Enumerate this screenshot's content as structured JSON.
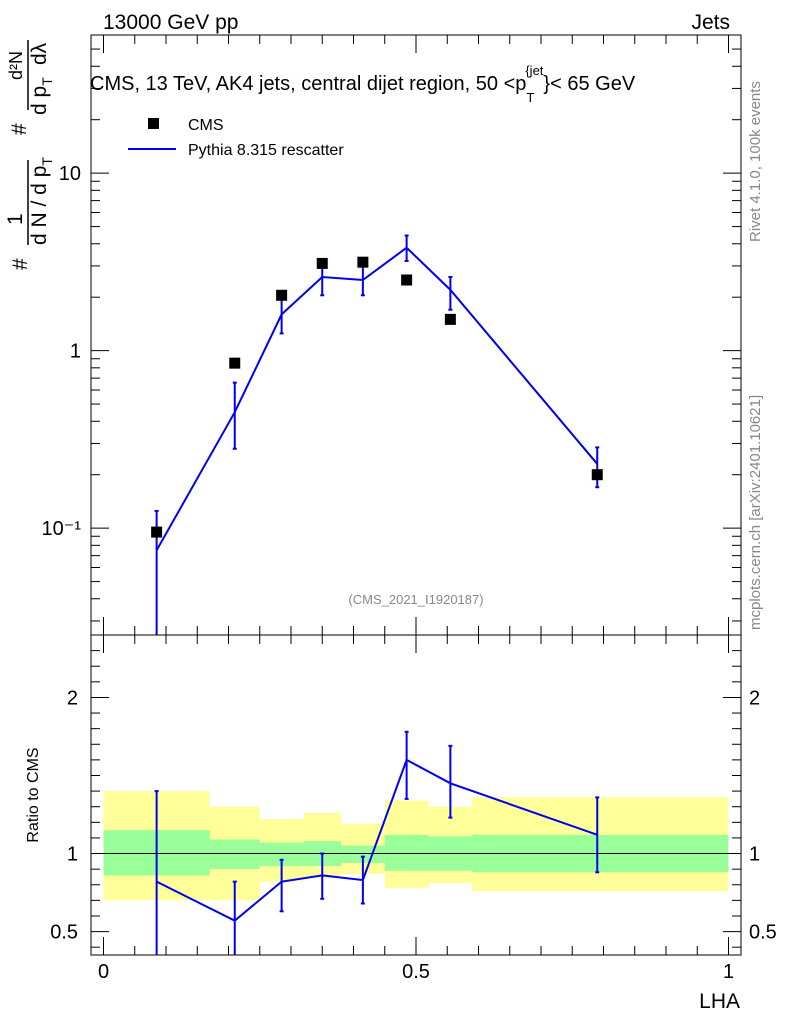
{
  "header": {
    "left": "13000 GeV pp",
    "right": "Jets"
  },
  "side_labels": {
    "rivet": "Rivet 4.1.0,  100k events",
    "mcplots": "mcplots.cern.ch [arXiv:2401.10621]"
  },
  "watermark": "(CMS_2021_I1920187)",
  "colors": {
    "mc": "#0000ee",
    "data": "#000000",
    "band_inner": "#99ff99",
    "band_outer": "#ffff99"
  },
  "chart_data": [
    {
      "type": "scatter",
      "panel": "main",
      "title": "CMS, 13 TeV, AK4 jets, central dijet region, 50 <p_T^{jet}< 65 GeV",
      "title_parts": {
        "pre": "CMS, 13 TeV, AK4 jets, central dijet region, 50 <p",
        "sub": "T",
        "sup": "{jet",
        "post": "}< 65 GeV"
      },
      "xlabel": "LHA",
      "ylabel": "1/(dN/dp_T) dN²/(dp_T dλ)",
      "ylabel_parts": {
        "hash": "#",
        "one": "1",
        "dN": "d N / d p",
        "T": "T",
        "d2N": "d²N",
        "dptdl": "d p",
        "dl": "dλ"
      },
      "yscale": "log",
      "ylim": [
        0.025,
        60
      ],
      "xlim": [
        -0.02,
        1.02
      ],
      "yticks": [
        {
          "v": 0.1,
          "label": "10⁻¹"
        },
        {
          "v": 1,
          "label": "1"
        },
        {
          "v": 10,
          "label": "10"
        }
      ],
      "legend": {
        "data_label": "CMS",
        "mc_label": "Pythia 8.315 rescatter",
        "placement": "top-left"
      },
      "series": [
        {
          "name": "CMS",
          "style": "markers",
          "x": [
            0.085,
            0.21,
            0.285,
            0.35,
            0.415,
            0.485,
            0.555,
            0.79
          ],
          "y": [
            0.095,
            0.85,
            2.05,
            3.1,
            3.15,
            2.5,
            1.5,
            0.2
          ]
        },
        {
          "name": "Pythia 8.315 rescatter",
          "style": "line",
          "x": [
            0.085,
            0.21,
            0.285,
            0.35,
            0.415,
            0.485,
            0.555,
            0.79
          ],
          "y": [
            0.075,
            0.45,
            1.6,
            2.6,
            2.5,
            3.8,
            2.2,
            0.23
          ],
          "err_low": [
            0.075,
            0.17,
            0.35,
            0.55,
            0.45,
            0.6,
            0.5,
            0.06
          ],
          "err_high": [
            0.05,
            0.21,
            0.5,
            0.65,
            0.55,
            0.65,
            0.4,
            0.055
          ]
        }
      ]
    },
    {
      "type": "line",
      "panel": "ratio",
      "ylabel": "Ratio to CMS",
      "xlabel": "LHA",
      "ylim": [
        0.35,
        2.4
      ],
      "xlim": [
        -0.02,
        1.02
      ],
      "yticks": [
        {
          "v": 0.5,
          "label": "0.5"
        },
        {
          "v": 1,
          "label": "1"
        },
        {
          "v": 2,
          "label": "2"
        }
      ],
      "xticks": [
        {
          "v": 0,
          "label": "0"
        },
        {
          "v": 0.5,
          "label": "0.5"
        },
        {
          "v": 1,
          "label": "1"
        }
      ],
      "bands": [
        {
          "x0": 0.0,
          "x1": 0.17,
          "inner": [
            0.86,
            1.15
          ],
          "outer": [
            0.7,
            1.4
          ]
        },
        {
          "x0": 0.17,
          "x1": 0.25,
          "inner": [
            0.9,
            1.09
          ],
          "outer": [
            0.7,
            1.3
          ]
        },
        {
          "x0": 0.25,
          "x1": 0.32,
          "inner": [
            0.92,
            1.07
          ],
          "outer": [
            0.82,
            1.22
          ]
        },
        {
          "x0": 0.32,
          "x1": 0.38,
          "inner": [
            0.92,
            1.08
          ],
          "outer": [
            0.84,
            1.26
          ]
        },
        {
          "x0": 0.38,
          "x1": 0.45,
          "inner": [
            0.94,
            1.05
          ],
          "outer": [
            0.87,
            1.19
          ]
        },
        {
          "x0": 0.45,
          "x1": 0.52,
          "inner": [
            0.89,
            1.12
          ],
          "outer": [
            0.78,
            1.34
          ]
        },
        {
          "x0": 0.52,
          "x1": 0.59,
          "inner": [
            0.89,
            1.11
          ],
          "outer": [
            0.81,
            1.3
          ]
        },
        {
          "x0": 0.59,
          "x1": 1.0,
          "inner": [
            0.88,
            1.12
          ],
          "outer": [
            0.76,
            1.36
          ]
        }
      ],
      "series": [
        {
          "name": "Pythia 8.315 rescatter / CMS",
          "x": [
            0.085,
            0.21,
            0.285,
            0.35,
            0.415,
            0.485,
            0.555,
            0.79
          ],
          "y": [
            0.82,
            0.57,
            0.82,
            0.86,
            0.83,
            1.6,
            1.45,
            1.12
          ],
          "err_low": [
            0.47,
            0.22,
            0.19,
            0.15,
            0.15,
            0.25,
            0.22,
            0.24
          ],
          "err_high": [
            0.58,
            0.25,
            0.14,
            0.14,
            0.15,
            0.18,
            0.24,
            0.24
          ]
        }
      ]
    }
  ]
}
